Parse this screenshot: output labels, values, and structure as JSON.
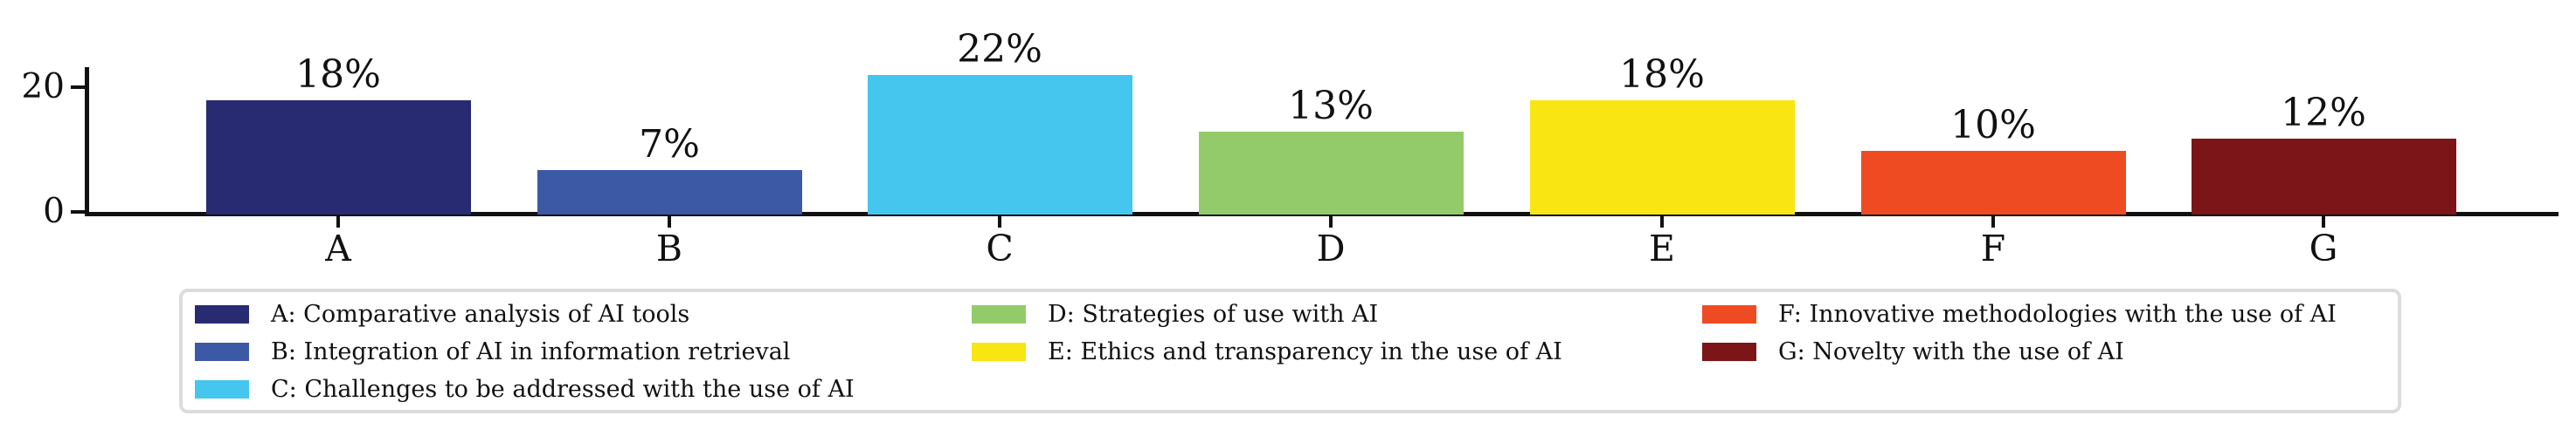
{
  "figure": {
    "background": "#ffffff",
    "text_color": "#111111",
    "axis_color": "#111111",
    "legend_border_color": "#dcdcdc"
  },
  "chart_data": {
    "type": "bar",
    "title": "",
    "xlabel": "",
    "ylabel": "",
    "categories": [
      "A",
      "B",
      "C",
      "D",
      "E",
      "F",
      "G"
    ],
    "values": [
      18,
      7,
      22,
      13,
      18,
      10,
      12
    ],
    "bar_labels": [
      "18%",
      "7%",
      "22%",
      "13%",
      "18%",
      "10%",
      "12%"
    ],
    "bar_colors": [
      "#282b72",
      "#3c59a5",
      "#45c6ee",
      "#93cb6b",
      "#f8e512",
      "#ef4b23",
      "#7c1518"
    ],
    "yticks": [
      0,
      20
    ],
    "ylim": [
      0,
      23.3
    ],
    "grid": false,
    "legend_position": "bottom",
    "legend": [
      {
        "key": "A",
        "label": "A: Comparative analysis of AI tools",
        "color": "#282b72"
      },
      {
        "key": "B",
        "label": "B: Integration of AI in information retrieval",
        "color": "#3c59a5"
      },
      {
        "key": "C",
        "label": "C: Challenges to be addressed with the use of AI",
        "color": "#45c6ee"
      },
      {
        "key": "D",
        "label": "D: Strategies of use with AI",
        "color": "#93cb6b"
      },
      {
        "key": "E",
        "label": "E: Ethics and transparency in the use of AI",
        "color": "#f8e512"
      },
      {
        "key": "F",
        "label": "F: Innovative methodologies with the use of AI",
        "color": "#ef4b23"
      },
      {
        "key": "G",
        "label": "G: Novelty with the use of AI",
        "color": "#7c1518"
      }
    ],
    "legend_columns": [
      [
        0,
        1,
        2
      ],
      [
        3,
        4
      ],
      [
        5,
        6
      ]
    ]
  }
}
